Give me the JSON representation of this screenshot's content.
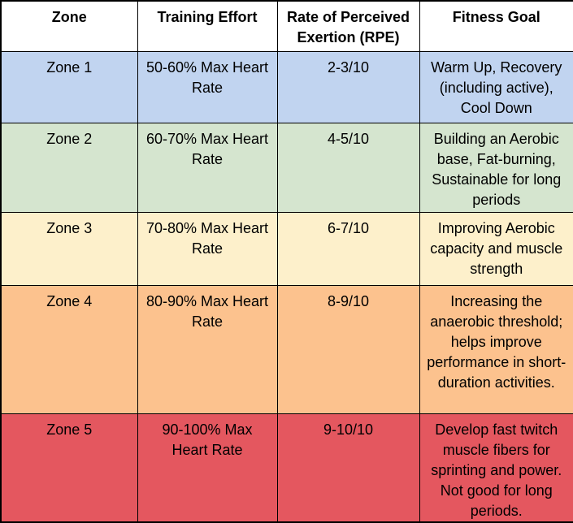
{
  "table": {
    "headers": [
      "Zone",
      "Training Effort",
      "Rate of Perceived Exertion (RPE)",
      "Fitness Goal"
    ],
    "rows": [
      {
        "zone": "Zone 1",
        "effort": "50-60% Max Heart Rate",
        "rpe": "2-3/10",
        "goal": "Warm Up, Recovery (including active), Cool Down",
        "color": "#c1d4f0"
      },
      {
        "zone": "Zone 2",
        "effort": "60-70% Max Heart Rate",
        "rpe": "4-5/10",
        "goal": "Building an Aerobic base, Fat-burning, Sustainable for long periods",
        "color": "#d5e5cf"
      },
      {
        "zone": "Zone 3",
        "effort": "70-80% Max Heart Rate",
        "rpe": "6-7/10",
        "goal": "Improving Aerobic capacity and muscle strength",
        "color": "#fdf0cb"
      },
      {
        "zone": "Zone 4",
        "effort": "80-90% Max Heart Rate",
        "rpe": "8-9/10",
        "goal": "Increasing the anaerobic threshold; helps improve performance in short-duration activities.",
        "color": "#fcc28e"
      },
      {
        "zone": "Zone 5",
        "effort": "90-100% Max Heart Rate",
        "rpe": "9-10/10",
        "goal": "Develop fast twitch muscle fibers for sprinting and power. Not good for long periods.",
        "color": "#e4575f"
      }
    ],
    "grid_color": "#000000"
  }
}
